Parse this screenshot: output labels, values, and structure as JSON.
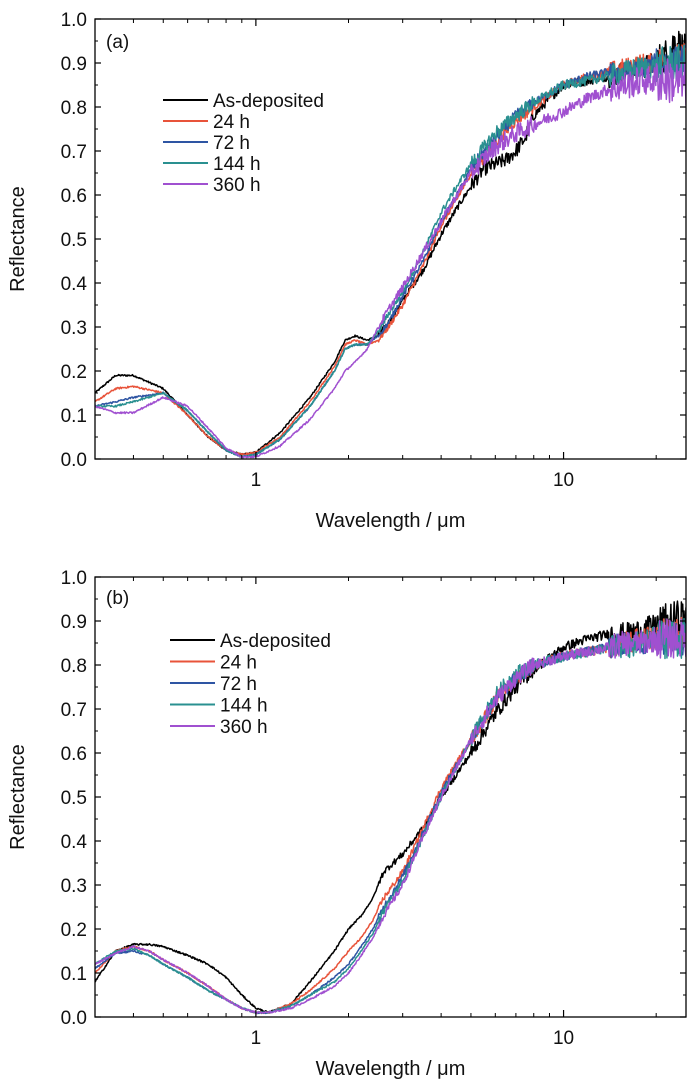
{
  "chart_data": [
    {
      "type": "line",
      "panel_label": "(a)",
      "xlabel": "Wavelength / μm",
      "ylabel": "Reflectance",
      "x_scale": "log",
      "xlim": [
        0.3,
        25
      ],
      "ylim": [
        0.0,
        1.0
      ],
      "xticks": [
        1,
        10
      ],
      "yticks": [
        0.0,
        0.1,
        0.2,
        0.3,
        0.4,
        0.5,
        0.6,
        0.7,
        0.8,
        0.9,
        1.0
      ],
      "grid": false,
      "legend": "top-left",
      "series": [
        {
          "name": "As-deposited",
          "color": "#000000",
          "noise": 0.012,
          "x": [
            0.3,
            0.35,
            0.4,
            0.5,
            0.6,
            0.7,
            0.8,
            0.9,
            1.0,
            1.2,
            1.5,
            1.8,
            1.95,
            2.1,
            2.3,
            2.5,
            2.7,
            3.0,
            3.5,
            4.0,
            4.5,
            5.0,
            5.5,
            6.0,
            6.5,
            7.0,
            7.5,
            8,
            9,
            10,
            12,
            14,
            16,
            18,
            20,
            22,
            23,
            25
          ],
          "y": [
            0.15,
            0.19,
            0.19,
            0.16,
            0.1,
            0.05,
            0.02,
            0.01,
            0.015,
            0.06,
            0.14,
            0.22,
            0.27,
            0.28,
            0.27,
            0.28,
            0.31,
            0.36,
            0.43,
            0.51,
            0.57,
            0.62,
            0.66,
            0.67,
            0.68,
            0.7,
            0.73,
            0.78,
            0.82,
            0.85,
            0.86,
            0.87,
            0.88,
            0.89,
            0.9,
            0.92,
            0.95,
            0.92
          ]
        },
        {
          "name": "24 h",
          "color": "#e8533a",
          "noise": 0.01,
          "x": [
            0.3,
            0.35,
            0.4,
            0.5,
            0.6,
            0.7,
            0.8,
            0.9,
            1.0,
            1.2,
            1.5,
            1.8,
            1.95,
            2.1,
            2.3,
            2.5,
            2.7,
            3.0,
            3.5,
            4.0,
            4.5,
            5.0,
            6.0,
            7.0,
            8,
            10,
            12,
            14,
            16,
            18,
            20,
            22,
            25
          ],
          "y": [
            0.13,
            0.16,
            0.165,
            0.15,
            0.1,
            0.05,
            0.02,
            0.01,
            0.015,
            0.05,
            0.13,
            0.21,
            0.26,
            0.27,
            0.26,
            0.27,
            0.3,
            0.35,
            0.44,
            0.53,
            0.59,
            0.65,
            0.72,
            0.77,
            0.8,
            0.85,
            0.87,
            0.88,
            0.89,
            0.9,
            0.9,
            0.91,
            0.91
          ]
        },
        {
          "name": "72 h",
          "color": "#2e55a3",
          "noise": 0.01,
          "x": [
            0.3,
            0.35,
            0.4,
            0.5,
            0.6,
            0.7,
            0.8,
            0.9,
            1.0,
            1.2,
            1.5,
            1.8,
            1.95,
            2.1,
            2.3,
            2.5,
            2.7,
            3.0,
            3.5,
            4.0,
            4.5,
            5.0,
            6.0,
            7.0,
            8,
            10,
            12,
            14,
            16,
            18,
            20,
            22,
            25
          ],
          "y": [
            0.12,
            0.13,
            0.14,
            0.15,
            0.11,
            0.06,
            0.02,
            0.005,
            0.01,
            0.045,
            0.12,
            0.2,
            0.25,
            0.26,
            0.26,
            0.28,
            0.31,
            0.37,
            0.45,
            0.54,
            0.6,
            0.66,
            0.73,
            0.78,
            0.81,
            0.85,
            0.87,
            0.88,
            0.88,
            0.89,
            0.9,
            0.9,
            0.91
          ]
        },
        {
          "name": "144 h",
          "color": "#2a9090",
          "noise": 0.012,
          "x": [
            0.3,
            0.35,
            0.4,
            0.5,
            0.6,
            0.7,
            0.8,
            0.9,
            1.0,
            1.2,
            1.5,
            1.8,
            1.95,
            2.1,
            2.3,
            2.5,
            2.7,
            3.0,
            3.5,
            4.0,
            4.5,
            5.0,
            6.0,
            7.0,
            8,
            10,
            12,
            14,
            16,
            18,
            20,
            22,
            25
          ],
          "y": [
            0.12,
            0.12,
            0.13,
            0.15,
            0.11,
            0.06,
            0.02,
            0.005,
            0.01,
            0.045,
            0.12,
            0.2,
            0.25,
            0.26,
            0.26,
            0.29,
            0.33,
            0.38,
            0.47,
            0.56,
            0.62,
            0.67,
            0.74,
            0.78,
            0.81,
            0.85,
            0.86,
            0.87,
            0.88,
            0.89,
            0.89,
            0.9,
            0.9
          ]
        },
        {
          "name": "360 h",
          "color": "#a050d0",
          "noise": 0.015,
          "x": [
            0.3,
            0.35,
            0.4,
            0.5,
            0.6,
            0.7,
            0.8,
            0.9,
            1.0,
            1.2,
            1.5,
            1.8,
            1.95,
            2.1,
            2.3,
            2.5,
            2.7,
            3.0,
            3.5,
            4.0,
            4.5,
            5.0,
            6.0,
            7.0,
            8,
            10,
            12,
            14,
            16,
            18,
            20,
            22,
            25
          ],
          "y": [
            0.12,
            0.105,
            0.105,
            0.14,
            0.12,
            0.07,
            0.025,
            0.005,
            0.005,
            0.03,
            0.09,
            0.16,
            0.2,
            0.22,
            0.25,
            0.3,
            0.34,
            0.39,
            0.47,
            0.54,
            0.6,
            0.65,
            0.71,
            0.74,
            0.76,
            0.79,
            0.82,
            0.84,
            0.85,
            0.86,
            0.86,
            0.86,
            0.85
          ]
        }
      ]
    },
    {
      "type": "line",
      "panel_label": "(b)",
      "xlabel": "Wavelength / μm",
      "ylabel": "Reflectance",
      "x_scale": "log",
      "xlim": [
        0.3,
        25
      ],
      "ylim": [
        0.0,
        1.0
      ],
      "xticks": [
        1,
        10
      ],
      "yticks": [
        0.0,
        0.1,
        0.2,
        0.3,
        0.4,
        0.5,
        0.6,
        0.7,
        0.8,
        0.9,
        1.0
      ],
      "grid": false,
      "legend": "top-left",
      "series": [
        {
          "name": "As-deposited",
          "color": "#000000",
          "noise": 0.012,
          "x": [
            0.3,
            0.35,
            0.4,
            0.45,
            0.5,
            0.6,
            0.7,
            0.8,
            0.9,
            1.0,
            1.1,
            1.3,
            1.5,
            1.8,
            2.0,
            2.2,
            2.4,
            2.6,
            3.0,
            3.5,
            4.0,
            5.0,
            6.0,
            7.0,
            8,
            10,
            12,
            14,
            16,
            18,
            20,
            22,
            25
          ],
          "y": [
            0.08,
            0.15,
            0.165,
            0.165,
            0.16,
            0.14,
            0.12,
            0.09,
            0.05,
            0.02,
            0.01,
            0.03,
            0.08,
            0.15,
            0.2,
            0.23,
            0.27,
            0.33,
            0.37,
            0.43,
            0.5,
            0.6,
            0.69,
            0.75,
            0.79,
            0.84,
            0.86,
            0.87,
            0.87,
            0.88,
            0.89,
            0.9,
            0.91
          ]
        },
        {
          "name": "24 h",
          "color": "#e8533a",
          "noise": 0.012,
          "x": [
            0.3,
            0.35,
            0.4,
            0.45,
            0.5,
            0.6,
            0.7,
            0.8,
            0.9,
            1.0,
            1.1,
            1.3,
            1.5,
            1.8,
            2.0,
            2.2,
            2.4,
            2.6,
            3.0,
            3.5,
            4.0,
            5.0,
            6.0,
            7.0,
            8,
            10,
            12,
            14,
            16,
            18,
            20,
            22,
            25
          ],
          "y": [
            0.1,
            0.15,
            0.16,
            0.15,
            0.13,
            0.1,
            0.07,
            0.04,
            0.02,
            0.01,
            0.01,
            0.03,
            0.06,
            0.11,
            0.15,
            0.18,
            0.22,
            0.27,
            0.33,
            0.43,
            0.52,
            0.63,
            0.72,
            0.77,
            0.8,
            0.82,
            0.83,
            0.84,
            0.85,
            0.86,
            0.86,
            0.87,
            0.87
          ]
        },
        {
          "name": "72 h",
          "color": "#2e55a3",
          "noise": 0.012,
          "x": [
            0.3,
            0.35,
            0.4,
            0.45,
            0.5,
            0.6,
            0.7,
            0.8,
            0.9,
            1.0,
            1.1,
            1.3,
            1.5,
            1.8,
            2.0,
            2.2,
            2.4,
            2.6,
            3.0,
            3.5,
            4.0,
            5.0,
            6.0,
            7.0,
            8,
            10,
            12,
            14,
            16,
            18,
            20,
            22,
            25
          ],
          "y": [
            0.11,
            0.145,
            0.15,
            0.14,
            0.12,
            0.09,
            0.06,
            0.04,
            0.02,
            0.01,
            0.01,
            0.025,
            0.05,
            0.09,
            0.12,
            0.16,
            0.2,
            0.25,
            0.32,
            0.42,
            0.51,
            0.63,
            0.72,
            0.77,
            0.8,
            0.82,
            0.83,
            0.84,
            0.85,
            0.85,
            0.86,
            0.86,
            0.86
          ]
        },
        {
          "name": "144 h",
          "color": "#2a9090",
          "noise": 0.013,
          "x": [
            0.3,
            0.35,
            0.4,
            0.45,
            0.5,
            0.6,
            0.7,
            0.8,
            0.9,
            1.0,
            1.1,
            1.3,
            1.5,
            1.8,
            2.0,
            2.2,
            2.4,
            2.6,
            3.0,
            3.5,
            4.0,
            5.0,
            6.0,
            7.0,
            8,
            10,
            12,
            14,
            16,
            18,
            20,
            22,
            25
          ],
          "y": [
            0.12,
            0.15,
            0.155,
            0.14,
            0.12,
            0.09,
            0.06,
            0.04,
            0.02,
            0.01,
            0.01,
            0.025,
            0.05,
            0.08,
            0.11,
            0.15,
            0.19,
            0.24,
            0.31,
            0.41,
            0.5,
            0.63,
            0.73,
            0.78,
            0.8,
            0.82,
            0.83,
            0.84,
            0.84,
            0.85,
            0.86,
            0.86,
            0.86
          ]
        },
        {
          "name": "360 h",
          "color": "#a050d0",
          "noise": 0.013,
          "x": [
            0.3,
            0.35,
            0.4,
            0.45,
            0.5,
            0.6,
            0.7,
            0.8,
            0.9,
            1.0,
            1.1,
            1.3,
            1.5,
            1.8,
            2.0,
            2.2,
            2.4,
            2.6,
            3.0,
            3.5,
            4.0,
            5.0,
            6.0,
            7.0,
            8,
            10,
            12,
            14,
            16,
            18,
            20,
            22,
            25
          ],
          "y": [
            0.12,
            0.145,
            0.16,
            0.15,
            0.13,
            0.1,
            0.07,
            0.04,
            0.02,
            0.01,
            0.01,
            0.02,
            0.04,
            0.07,
            0.1,
            0.14,
            0.18,
            0.23,
            0.3,
            0.41,
            0.5,
            0.63,
            0.72,
            0.77,
            0.8,
            0.82,
            0.83,
            0.84,
            0.85,
            0.85,
            0.86,
            0.86,
            0.86
          ]
        }
      ]
    }
  ]
}
